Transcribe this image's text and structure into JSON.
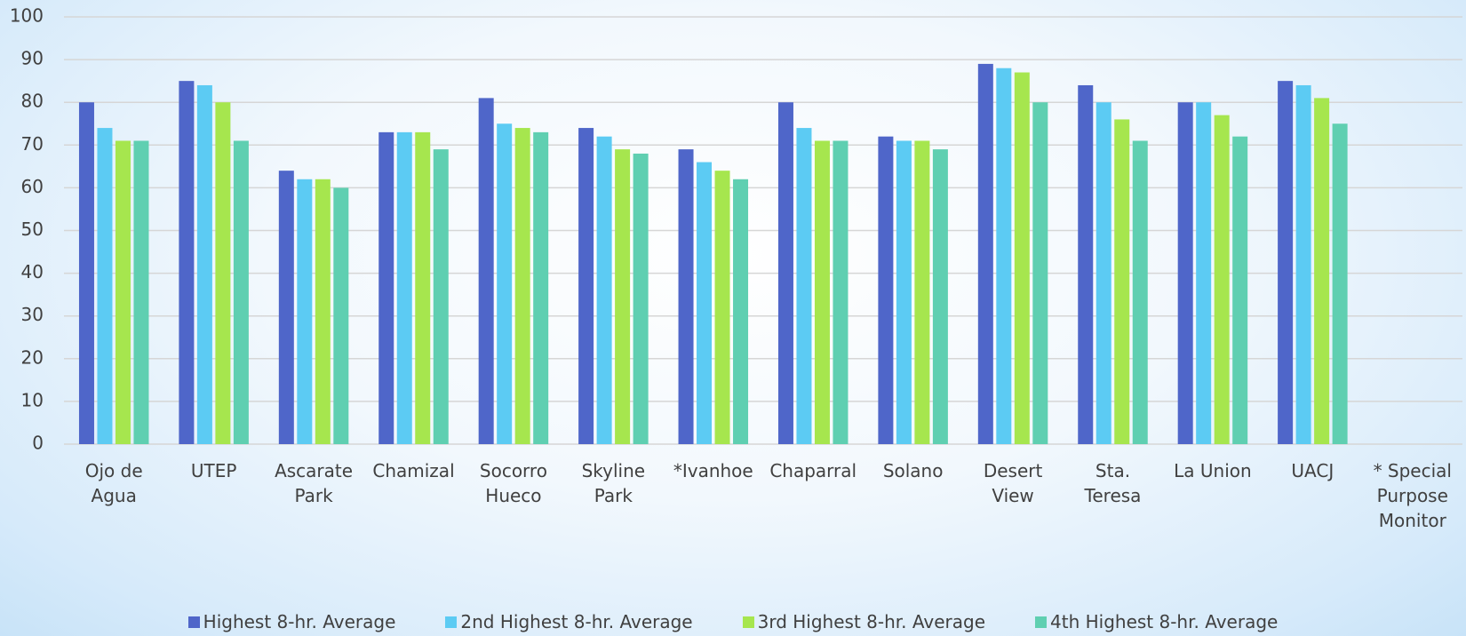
{
  "chart_data": {
    "type": "bar",
    "categories": [
      "Ojo de Agua",
      "UTEP",
      "Ascarate Park",
      "Chamizal",
      "Socorro Hueco",
      "Skyline Park",
      "*Ivanhoe",
      "Chaparral",
      "Solano",
      "Desert View",
      "Sta. Teresa",
      "La Union",
      "UACJ",
      "* Special Purpose Monitor"
    ],
    "series": [
      {
        "name": "Highest 8-hr. Average",
        "color": "#4f66c9",
        "values": [
          80,
          85,
          64,
          73,
          81,
          74,
          69,
          80,
          72,
          89,
          84,
          80,
          85,
          null
        ]
      },
      {
        "name": "2nd Highest 8-hr. Average",
        "color": "#5ccbf3",
        "values": [
          74,
          84,
          62,
          73,
          75,
          72,
          66,
          74,
          71,
          88,
          80,
          80,
          84,
          null
        ]
      },
      {
        "name": "3rd Highest 8-hr. Average",
        "color": "#a6e64e",
        "values": [
          71,
          80,
          62,
          73,
          74,
          69,
          64,
          71,
          71,
          87,
          76,
          77,
          81,
          null
        ]
      },
      {
        "name": "4th Highest 8-hr. Average",
        "color": "#5fcfb1",
        "values": [
          71,
          71,
          60,
          69,
          73,
          68,
          62,
          71,
          69,
          80,
          71,
          72,
          75,
          null
        ]
      }
    ],
    "ylim": [
      0,
      100
    ],
    "yticks": [
      0,
      10,
      20,
      30,
      40,
      50,
      60,
      70,
      80,
      90,
      100
    ],
    "grid": true,
    "legend": "bottom"
  }
}
